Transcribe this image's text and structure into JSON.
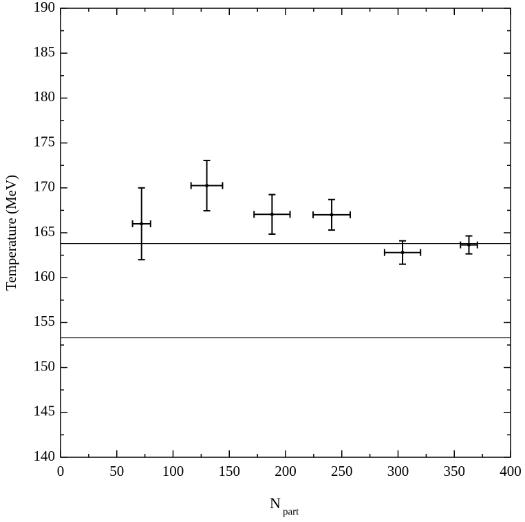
{
  "chart_data": {
    "type": "scatter",
    "x_label": "N",
    "x_label_subscript": "part",
    "y_label": "Temperature (MeV)",
    "xlim": [
      0,
      400
    ],
    "xticks": [
      0,
      50,
      100,
      150,
      200,
      250,
      300,
      350,
      400
    ],
    "ylim": [
      140,
      190
    ],
    "yticks": [
      140,
      145,
      150,
      155,
      160,
      165,
      170,
      175,
      180,
      185,
      190
    ],
    "series": [
      {
        "color": "#000000",
        "x": [
          72,
          130,
          188,
          241,
          304,
          363
        ],
        "y": [
          166.0,
          170.25,
          167.05,
          167.0,
          162.8,
          163.65
        ],
        "xerr": [
          8,
          14,
          16,
          16.5,
          16,
          7.5
        ],
        "yerr": [
          4,
          2.8,
          2.2,
          1.7,
          1.3,
          1.0
        ]
      }
    ],
    "hlines": [
      163.8,
      153.3
    ]
  }
}
